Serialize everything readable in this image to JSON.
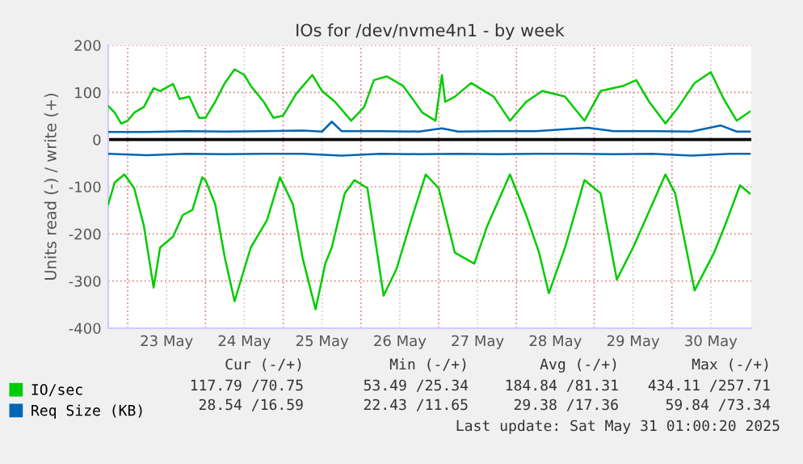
{
  "chart_data": {
    "type": "line",
    "title": "IOs for /dev/nvme4n1 - by week",
    "ylabel": "Units read (-) / write (+)",
    "xlim": [
      "2025-05-22T18:00",
      "2025-05-31T00:30"
    ],
    "xticks": [
      {
        "value": "2025-05-23T00:00",
        "label": null
      },
      {
        "value": "2025-05-23T12:00",
        "label": "23 May"
      },
      {
        "value": "2025-05-24T00:00",
        "label": null
      },
      {
        "value": "2025-05-24T12:00",
        "label": "24 May"
      },
      {
        "value": "2025-05-25T00:00",
        "label": null
      },
      {
        "value": "2025-05-25T12:00",
        "label": "25 May"
      },
      {
        "value": "2025-05-26T00:00",
        "label": null
      },
      {
        "value": "2025-05-26T12:00",
        "label": "26 May"
      },
      {
        "value": "2025-05-27T00:00",
        "label": null
      },
      {
        "value": "2025-05-27T12:00",
        "label": "27 May"
      },
      {
        "value": "2025-05-28T00:00",
        "label": null
      },
      {
        "value": "2025-05-28T12:00",
        "label": "28 May"
      },
      {
        "value": "2025-05-29T00:00",
        "label": null
      },
      {
        "value": "2025-05-29T12:00",
        "label": "29 May"
      },
      {
        "value": "2025-05-30T00:00",
        "label": null
      },
      {
        "value": "2025-05-30T12:00",
        "label": "30 May"
      }
    ],
    "ylim": [
      -400,
      200
    ],
    "yticks": [
      -400,
      -300,
      -200,
      -100,
      0,
      100,
      200
    ],
    "grid": true,
    "legend": "bottom",
    "ref_lines": [
      {
        "axis": "y",
        "value": 0,
        "color": "#000000"
      }
    ],
    "series": [
      {
        "name": "IO/sec",
        "color": "#00cc00",
        "x": [
          "2025-05-22T18:00",
          "2025-05-22T20:00",
          "2025-05-22T22:00",
          "2025-05-23T00:00",
          "2025-05-23T02:00",
          "2025-05-23T05:00",
          "2025-05-23T08:00",
          "2025-05-23T10:00",
          "2025-05-23T14:00",
          "2025-05-23T16:00",
          "2025-05-23T19:00",
          "2025-05-23T22:00",
          "2025-05-24T00:00",
          "2025-05-24T03:00",
          "2025-05-24T06:00",
          "2025-05-24T09:00",
          "2025-05-24T12:00",
          "2025-05-24T14:00",
          "2025-05-24T18:00",
          "2025-05-24T21:00",
          "2025-05-25T00:00",
          "2025-05-25T04:00",
          "2025-05-25T09:00",
          "2025-05-25T12:00",
          "2025-05-25T16:00",
          "2025-05-25T21:00",
          "2025-05-26T01:00",
          "2025-05-26T04:00",
          "2025-05-26T08:00",
          "2025-05-26T13:00",
          "2025-05-26T19:00",
          "2025-05-26T23:00",
          "2025-05-27T01:00",
          "2025-05-27T02:00",
          "2025-05-27T05:00",
          "2025-05-27T10:00",
          "2025-05-27T17:00",
          "2025-05-27T22:00",
          "2025-05-28T03:00",
          "2025-05-28T08:00",
          "2025-05-28T15:00",
          "2025-05-28T21:00",
          "2025-05-29T02:00",
          "2025-05-29T09:00",
          "2025-05-29T13:00",
          "2025-05-29T17:00",
          "2025-05-29T22:00",
          "2025-05-30T02:00",
          "2025-05-30T07:00",
          "2025-05-30T12:00",
          "2025-05-30T16:00",
          "2025-05-30T20:00",
          "2025-05-31T00:00"
        ],
        "values": [
          71,
          57,
          34,
          40,
          57,
          69,
          109,
          103,
          118,
          86,
          91,
          46,
          46,
          80,
          120,
          149,
          137,
          114,
          80,
          46,
          51,
          97,
          137,
          103,
          80,
          40,
          69,
          126,
          134,
          114,
          57,
          40,
          137,
          80,
          91,
          120,
          91,
          40,
          80,
          103,
          91,
          40,
          103,
          114,
          126,
          80,
          34,
          69,
          120,
          143,
          86,
          40,
          59
        ]
      },
      {
        "color": "#00cc00",
        "x": [
          "2025-05-22T18:00",
          "2025-05-22T20:00",
          "2025-05-22T23:00",
          "2025-05-23T02:00",
          "2025-05-23T05:00",
          "2025-05-23T08:00",
          "2025-05-23T10:00",
          "2025-05-23T14:00",
          "2025-05-23T17:00",
          "2025-05-23T20:00",
          "2025-05-23T23:00",
          "2025-05-24T00:00",
          "2025-05-24T03:00",
          "2025-05-24T06:00",
          "2025-05-24T09:00",
          "2025-05-24T12:00",
          "2025-05-24T14:00",
          "2025-05-24T19:00",
          "2025-05-24T23:00",
          "2025-05-25T03:00",
          "2025-05-25T06:00",
          "2025-05-25T10:00",
          "2025-05-25T13:00",
          "2025-05-25T15:00",
          "2025-05-25T19:00",
          "2025-05-25T22:00",
          "2025-05-26T02:00",
          "2025-05-26T07:00",
          "2025-05-26T11:00",
          "2025-05-26T16:00",
          "2025-05-26T20:00",
          "2025-05-27T00:00",
          "2025-05-27T05:00",
          "2025-05-27T11:00",
          "2025-05-27T15:00",
          "2025-05-27T22:00",
          "2025-05-28T03:00",
          "2025-05-28T07:00",
          "2025-05-28T10:00",
          "2025-05-28T15:00",
          "2025-05-28T21:00",
          "2025-05-29T02:00",
          "2025-05-29T07:00",
          "2025-05-29T12:00",
          "2025-05-29T22:00",
          "2025-05-30T01:00",
          "2025-05-30T07:00",
          "2025-05-30T13:00",
          "2025-05-30T17:00",
          "2025-05-30T21:00",
          "2025-05-31T00:00"
        ],
        "values": [
          -137,
          -91,
          -74,
          -103,
          -183,
          -314,
          -229,
          -206,
          -160,
          -149,
          -80,
          -86,
          -137,
          -251,
          -343,
          -274,
          -229,
          -171,
          -80,
          -137,
          -251,
          -360,
          -263,
          -229,
          -114,
          -86,
          -103,
          -331,
          -274,
          -160,
          -74,
          -103,
          -240,
          -263,
          -183,
          -74,
          -160,
          -240,
          -326,
          -229,
          -86,
          -114,
          -297,
          -229,
          -74,
          -114,
          -320,
          -240,
          -171,
          -97,
          -114
        ]
      },
      {
        "name": "Req Size (KB)",
        "color": "#0066b3",
        "x": [
          "2025-05-22T18:00",
          "2025-05-23T06:00",
          "2025-05-23T18:00",
          "2025-05-24T06:00",
          "2025-05-24T18:00",
          "2025-05-25T06:00",
          "2025-05-25T12:00",
          "2025-05-25T15:00",
          "2025-05-25T18:00",
          "2025-05-26T06:00",
          "2025-05-26T18:00",
          "2025-05-27T01:00",
          "2025-05-27T06:00",
          "2025-05-27T18:00",
          "2025-05-28T06:00",
          "2025-05-28T22:00",
          "2025-05-29T06:00",
          "2025-05-29T18:00",
          "2025-05-30T06:00",
          "2025-05-30T15:00",
          "2025-05-30T20:00",
          "2025-05-31T00:00"
        ],
        "values": [
          16,
          16,
          18,
          17,
          18,
          19,
          17,
          38,
          18,
          18,
          17,
          24,
          17,
          18,
          18,
          25,
          18,
          18,
          17,
          30,
          17,
          17
        ]
      },
      {
        "color": "#0066b3",
        "x": [
          "2025-05-22T18:00",
          "2025-05-23T06:00",
          "2025-05-23T18:00",
          "2025-05-24T06:00",
          "2025-05-24T18:00",
          "2025-05-25T06:00",
          "2025-05-25T18:00",
          "2025-05-26T06:00",
          "2025-05-26T18:00",
          "2025-05-27T06:00",
          "2025-05-27T18:00",
          "2025-05-28T06:00",
          "2025-05-28T18:00",
          "2025-05-29T06:00",
          "2025-05-29T18:00",
          "2025-05-30T06:00",
          "2025-05-30T18:00",
          "2025-05-31T00:00"
        ],
        "values": [
          -30,
          -33,
          -30,
          -31,
          -30,
          -30,
          -34,
          -30,
          -31,
          -30,
          -31,
          -30,
          -30,
          -31,
          -30,
          -34,
          -30,
          -30
        ]
      }
    ],
    "annotations": [
      "Cur (-/+)",
      "Min (-/+)",
      "Avg (-/+)",
      "Max (-/+)",
      "117.79 /70.75",
      "53.49 /25.34",
      "184.84 /81.31",
      "434.11 /257.71",
      "28.54 /16.59",
      "22.43 /11.65",
      "29.38 /17.36",
      "59.84 /73.34",
      "Last update: Sat May 31 01:00:20 2025"
    ]
  }
}
